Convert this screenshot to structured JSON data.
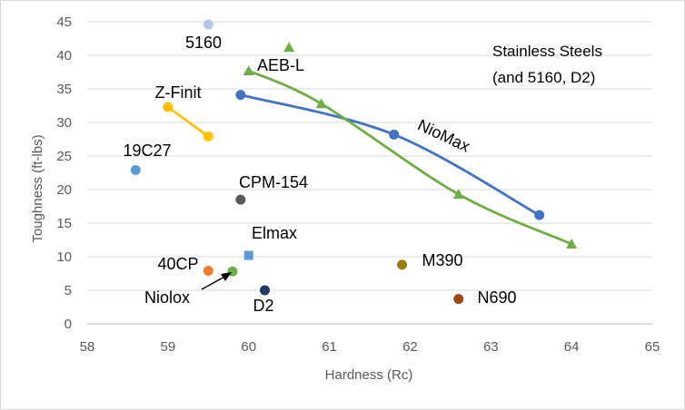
{
  "chart_data": {
    "type": "scatter",
    "title": "",
    "xlabel": "Hardness (Rc)",
    "ylabel": "Toughness (ft-lbs)",
    "xlim": [
      58,
      65
    ],
    "ylim": [
      0,
      45
    ],
    "xticks": [
      58,
      59,
      60,
      61,
      62,
      63,
      64,
      65
    ],
    "yticks": [
      0,
      5,
      10,
      15,
      20,
      25,
      30,
      35,
      40,
      45
    ],
    "grid": "horizontal",
    "annotation": [
      "Stainless Steels",
      "(and 5160, D2)"
    ],
    "points": [
      {
        "name": "5160",
        "x": 59.5,
        "y": 44.6,
        "color": "#b4c7e7",
        "marker": "circle"
      },
      {
        "name": "19C27",
        "x": 58.6,
        "y": 22.9,
        "color": "#5b9bd5",
        "marker": "circle"
      },
      {
        "name": "CPM-154",
        "x": 59.9,
        "y": 18.5,
        "color": "#595959",
        "marker": "circle"
      },
      {
        "name": "Elmax",
        "x": 60.0,
        "y": 10.2,
        "color": "#5b9bd5",
        "marker": "square"
      },
      {
        "name": "40CP",
        "x": 59.5,
        "y": 7.9,
        "color": "#ed7d31",
        "marker": "circle"
      },
      {
        "name": "Niolox",
        "x": 59.8,
        "y": 7.8,
        "color": "#70ad47",
        "marker": "circle"
      },
      {
        "name": "D2",
        "x": 60.2,
        "y": 5.0,
        "color": "#203864",
        "marker": "circle"
      },
      {
        "name": "M390",
        "x": 61.9,
        "y": 8.8,
        "color": "#9e7d0e",
        "marker": "circle"
      },
      {
        "name": "N690",
        "x": 62.6,
        "y": 3.7,
        "color": "#a0480e",
        "marker": "circle"
      }
    ],
    "series": [
      {
        "name": "Z-Finit",
        "color": "#ffc000",
        "marker": "circle",
        "x": [
          59.0,
          59.5
        ],
        "y": [
          32.3,
          27.9
        ]
      },
      {
        "name": "NioMax",
        "color": "#4472c4",
        "marker": "circle",
        "x": [
          59.9,
          61.8,
          63.6
        ],
        "y": [
          34.1,
          28.2,
          16.2
        ]
      },
      {
        "name": "AEB-L",
        "color": "#70ad47",
        "marker": "triangle",
        "x": [
          60.0,
          60.9,
          62.6,
          64.0
        ],
        "y": [
          37.7,
          32.8,
          19.3,
          11.9
        ],
        "extra_points": [
          {
            "x": 60.5,
            "y": 41.2
          }
        ]
      }
    ],
    "labels": {
      "5160": "5160",
      "19C27": "19C27",
      "CPM-154": "CPM-154",
      "Elmax": "Elmax",
      "40CP": "40CP",
      "Niolox": "Niolox",
      "D2": "D2",
      "M390": "M390",
      "N690": "N690",
      "Z-Finit": "Z-Finit",
      "NioMax": "NioMax",
      "AEB-L": "AEB-L"
    }
  }
}
